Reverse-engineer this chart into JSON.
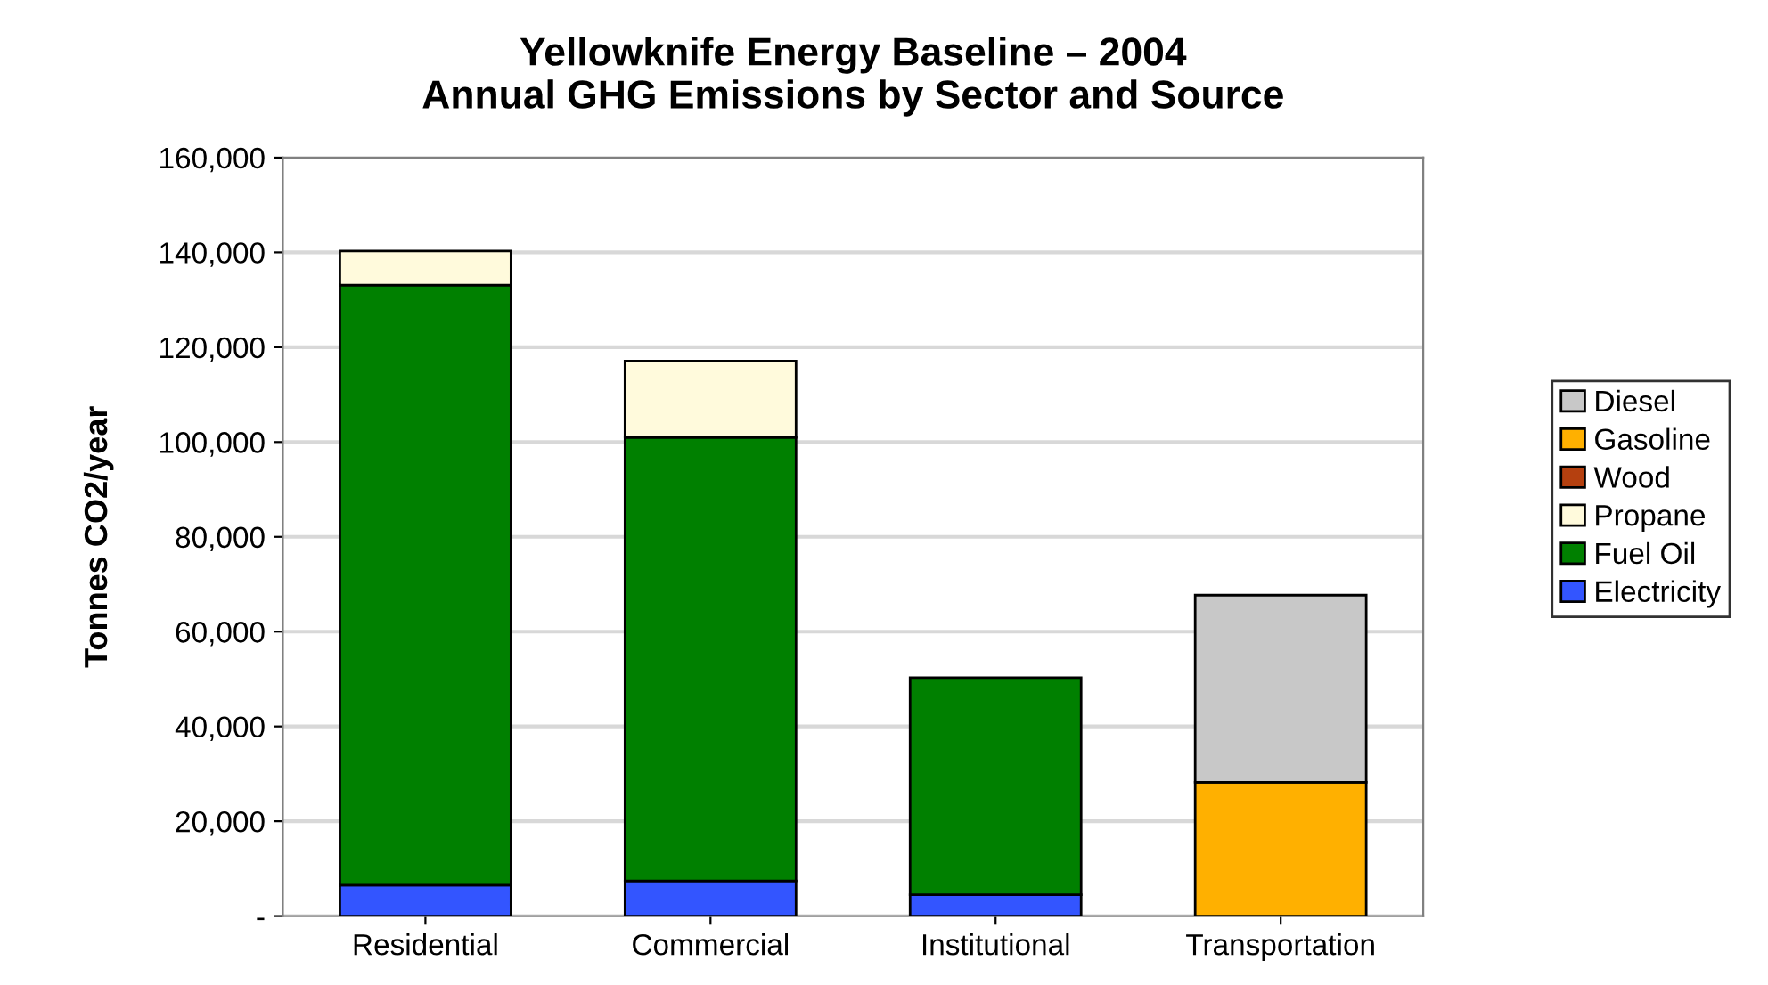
{
  "chart_data": {
    "type": "bar",
    "title": "Yellowknife Energy Baseline – 2004\nAnnual GHG Emissions by Sector and Source",
    "ylabel": "Tonnes CO2/year",
    "categories": [
      "Residential",
      "Commercial",
      "Institutional",
      "Transportation"
    ],
    "stacked": true,
    "series": [
      {
        "name": "Electricity",
        "color": "#3355ff",
        "values": [
          6500,
          7400,
          4500,
          null
        ]
      },
      {
        "name": "Fuel Oil",
        "color": "#008000",
        "values": [
          126600,
          93600,
          45800,
          null
        ]
      },
      {
        "name": "Propane",
        "color": "#fffadc",
        "values": [
          7200,
          16100,
          null,
          null
        ]
      },
      {
        "name": "Wood",
        "color": "#b5400f",
        "values": [
          null,
          null,
          null,
          null
        ]
      },
      {
        "name": "Gasoline",
        "color": "#ffb000",
        "values": [
          null,
          null,
          null,
          28200
        ]
      },
      {
        "name": "Diesel",
        "color": "#c8c8c8",
        "values": [
          null,
          null,
          null,
          39500
        ]
      }
    ],
    "ylim": [
      0,
      160000
    ],
    "yticks": [
      {
        "value": 0,
        "label": "-"
      },
      {
        "value": 20000,
        "label": "20,000"
      },
      {
        "value": 40000,
        "label": "40,000"
      },
      {
        "value": 60000,
        "label": "60,000"
      },
      {
        "value": 80000,
        "label": "80,000"
      },
      {
        "value": 100000,
        "label": "100,000"
      },
      {
        "value": 120000,
        "label": "120,000"
      },
      {
        "value": 140000,
        "label": "140,000"
      },
      {
        "value": 160000,
        "label": "160,000"
      }
    ],
    "grid": "y",
    "legend": "right"
  }
}
